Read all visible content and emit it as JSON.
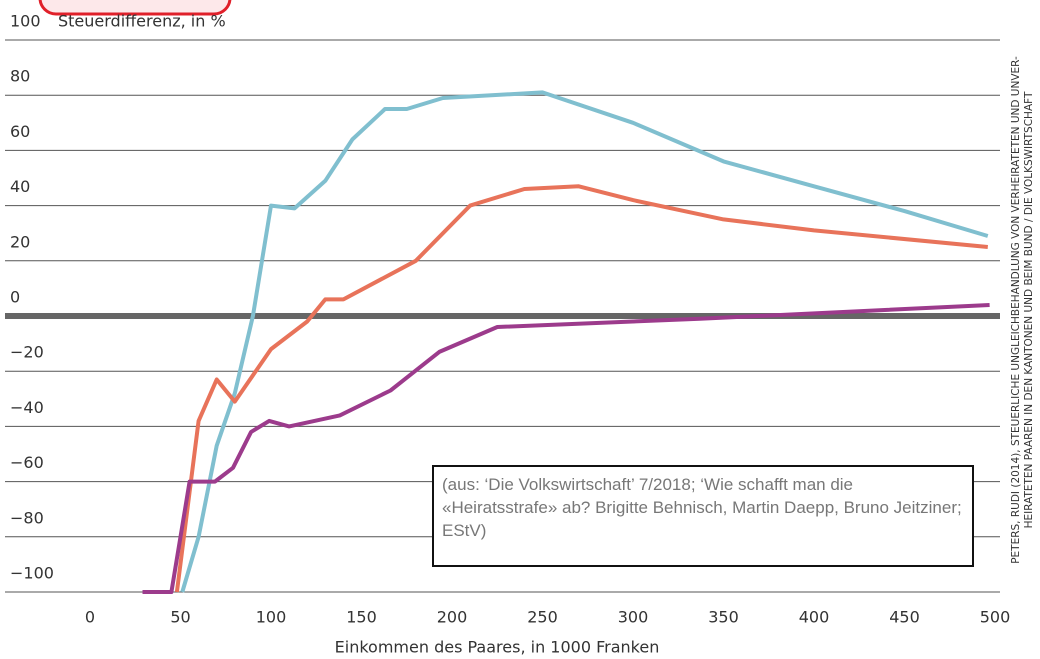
{
  "chart_data": {
    "type": "line",
    "title": "Steuerdifferenz, in %",
    "x_label": "Einkommen des Paares, in 1000 Franken",
    "annotation": "(aus: ‘Die Volkswirtschaft’ 7/2018; ‘Wie schafft man die «Heiratsstrafe» ab? Brigitte Behnisch, Martin Daepp, Bruno Jeitziner; EStV)",
    "source": [
      "PETERS, RUDI (2014), STEUERLICHE UNGLEICHBEHANDLUNG VON VERHEIRATETEN UND UNVER-",
      "HEIRATETEN PAAREN IN DEN KANTONEN UND BEIM BUND / DIE VOLKSWIRTSCHAFT"
    ],
    "xlim": [
      0,
      500
    ],
    "xticks": [
      0,
      50,
      100,
      150,
      200,
      250,
      300,
      350,
      400,
      450,
      500
    ],
    "ylim": [
      -100,
      100
    ],
    "yticks": [
      {
        "value": -100,
        "label": "−100"
      },
      {
        "value": -80,
        "label": "−80"
      },
      {
        "value": -60,
        "label": "−60"
      },
      {
        "value": -40,
        "label": "−40"
      },
      {
        "value": -20,
        "label": "−20"
      },
      0,
      20,
      40,
      60,
      80,
      100
    ],
    "grid": true,
    "series": [
      {
        "color": "#80bfcf",
        "x": [
          51,
          60,
          70,
          80,
          90,
          100,
          113,
          130,
          145,
          163,
          175,
          195,
          250,
          300,
          350,
          400,
          450,
          496
        ],
        "values": [
          -100,
          -80,
          -47,
          -28,
          0,
          40,
          39,
          49,
          64,
          75,
          75,
          79,
          81,
          70,
          56,
          47,
          38,
          29
        ]
      },
      {
        "color": "#e8735a",
        "x": [
          48,
          60,
          70,
          80,
          100,
          120,
          130,
          140,
          180,
          210,
          240,
          270,
          300,
          350,
          400,
          496
        ],
        "values": [
          -100,
          -38,
          -23,
          -31,
          -12,
          -2,
          6,
          6,
          20,
          40,
          46,
          47,
          42,
          35,
          31,
          25
        ]
      },
      {
        "color": "#9c3b8c",
        "x": [
          29,
          45,
          50,
          55,
          69,
          79,
          89,
          99,
          110,
          138,
          166,
          193,
          225,
          337,
          497
        ],
        "values": [
          -100,
          -100,
          -80,
          -60,
          -60,
          -55,
          -42,
          -38,
          -40,
          -36,
          -27,
          -13,
          -4,
          -1,
          4
        ]
      }
    ]
  }
}
